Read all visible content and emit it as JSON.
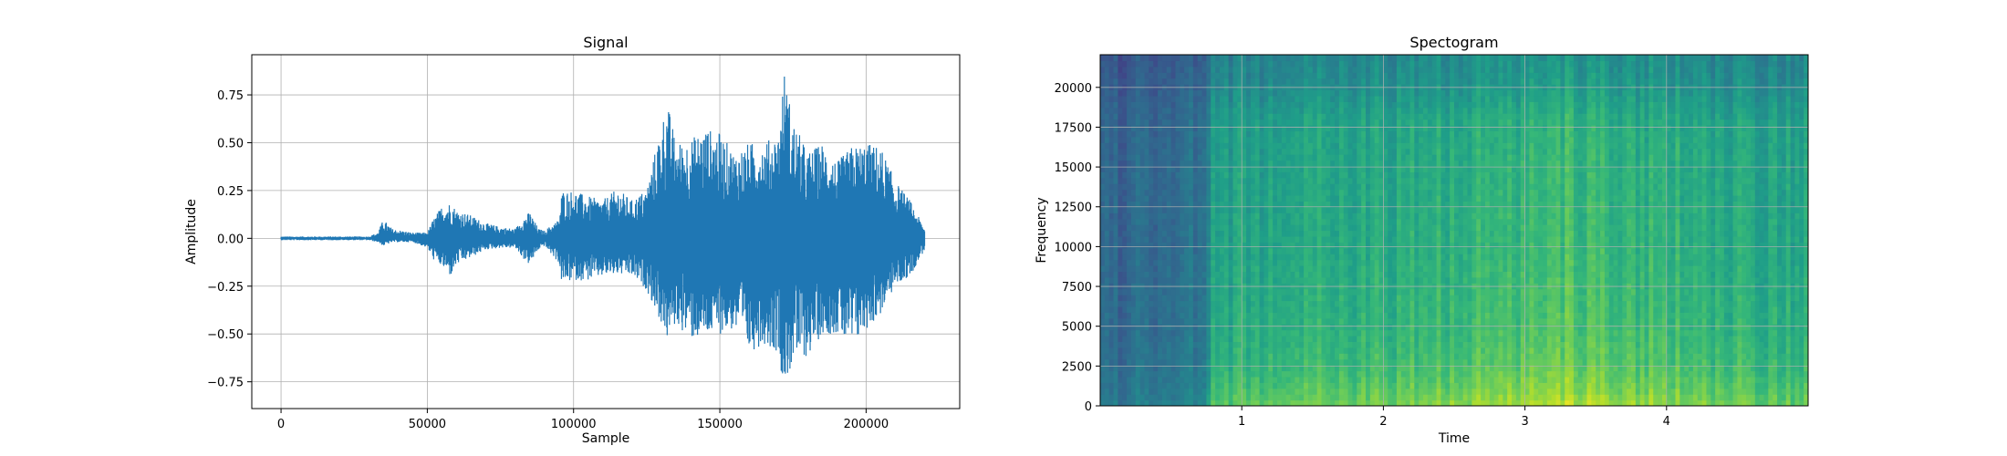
{
  "chart_data": [
    {
      "type": "line",
      "title": "Signal",
      "xlabel": "Sample",
      "ylabel": "Amplitude",
      "xlim": [
        -10000,
        232000
      ],
      "ylim": [
        -0.89,
        0.96
      ],
      "xticks": [
        0,
        50000,
        100000,
        150000,
        200000
      ],
      "xtick_labels": [
        "0",
        "50000",
        "100000",
        "150000",
        "200000"
      ],
      "yticks": [
        -0.75,
        -0.5,
        -0.25,
        0.0,
        0.25,
        0.5,
        0.75
      ],
      "ytick_labels": [
        "−0.75",
        "−0.50",
        "−0.25",
        "0.00",
        "0.25",
        "0.50",
        "0.75"
      ],
      "grid": true,
      "color": "#1f77b4",
      "envelope": {
        "x": [
          0,
          10000,
          20000,
          30000,
          33000,
          35000,
          38000,
          45000,
          50000,
          52000,
          55000,
          58000,
          60000,
          65000,
          70000,
          75000,
          80000,
          83000,
          85000,
          88000,
          90000,
          95000,
          96000,
          100000,
          105000,
          110000,
          115000,
          120000,
          125000,
          130000,
          132000,
          135000,
          140000,
          145000,
          150000,
          155000,
          160000,
          165000,
          170000,
          172000,
          175000,
          180000,
          185000,
          190000,
          195000,
          200000,
          205000,
          210000,
          215000,
          220000
        ],
        "upper": [
          0.01,
          0.01,
          0.01,
          0.01,
          0.03,
          0.1,
          0.05,
          0.03,
          0.03,
          0.1,
          0.17,
          0.19,
          0.15,
          0.12,
          0.08,
          0.06,
          0.05,
          0.11,
          0.14,
          0.05,
          0.04,
          0.1,
          0.25,
          0.25,
          0.22,
          0.2,
          0.26,
          0.2,
          0.26,
          0.6,
          0.72,
          0.5,
          0.52,
          0.58,
          0.55,
          0.45,
          0.5,
          0.5,
          0.55,
          0.88,
          0.62,
          0.45,
          0.5,
          0.4,
          0.48,
          0.5,
          0.48,
          0.3,
          0.2,
          0.05
        ],
        "lower": [
          -0.01,
          -0.01,
          -0.01,
          -0.01,
          -0.02,
          -0.04,
          -0.02,
          -0.02,
          -0.05,
          -0.11,
          -0.15,
          -0.2,
          -0.14,
          -0.1,
          -0.06,
          -0.05,
          -0.05,
          -0.11,
          -0.14,
          -0.06,
          -0.04,
          -0.13,
          -0.24,
          -0.22,
          -0.22,
          -0.2,
          -0.19,
          -0.2,
          -0.27,
          -0.45,
          -0.53,
          -0.45,
          -0.53,
          -0.52,
          -0.5,
          -0.48,
          -0.6,
          -0.55,
          -0.6,
          -0.79,
          -0.65,
          -0.62,
          -0.5,
          -0.5,
          -0.58,
          -0.48,
          -0.4,
          -0.25,
          -0.2,
          -0.06
        ]
      }
    },
    {
      "type": "heatmap",
      "title": "Spectogram",
      "xlabel": "Time",
      "ylabel": "Frequency",
      "xlim": [
        0,
        5.0
      ],
      "ylim": [
        0,
        22050
      ],
      "xticks": [
        1,
        2,
        3,
        4
      ],
      "xtick_labels": [
        "1",
        "2",
        "3",
        "4"
      ],
      "yticks": [
        0,
        2500,
        5000,
        7500,
        10000,
        12500,
        15000,
        17500,
        20000
      ],
      "ytick_labels": [
        "0",
        "2500",
        "5000",
        "7500",
        "10000",
        "12500",
        "15000",
        "17500",
        "20000"
      ],
      "grid": true,
      "colormap": "viridis",
      "time_profile": {
        "t": [
          0.0,
          0.3,
          0.6,
          0.75,
          0.8,
          1.0,
          1.2,
          1.5,
          2.0,
          2.5,
          3.0,
          3.3,
          3.6,
          4.0,
          4.4,
          4.8,
          5.0
        ],
        "level": [
          0.1,
          0.12,
          0.15,
          0.2,
          0.55,
          0.6,
          0.62,
          0.65,
          0.66,
          0.7,
          0.78,
          0.82,
          0.75,
          0.72,
          0.66,
          0.62,
          0.6
        ]
      },
      "freq_profile": {
        "f": [
          0,
          1000,
          2500,
          5000,
          10000,
          15000,
          18000,
          20000,
          22050
        ],
        "level": [
          1.0,
          0.85,
          0.7,
          0.6,
          0.5,
          0.45,
          0.4,
          0.2,
          0.1
        ]
      }
    }
  ]
}
